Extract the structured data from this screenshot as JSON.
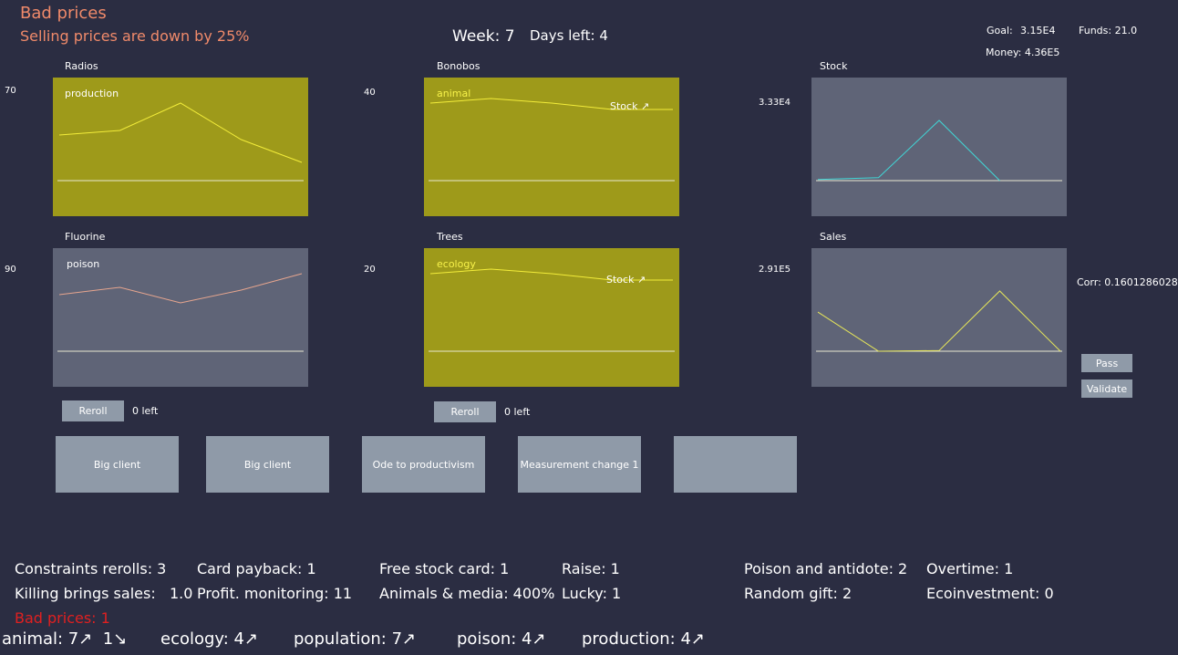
{
  "event": {
    "title": "Bad prices",
    "description": "Selling prices are down by 25%"
  },
  "header": {
    "week": "Week: 7",
    "days_left": "Days left: 4"
  },
  "finance": {
    "goal_label": "Goal:",
    "goal_value": "3.15E4",
    "funds": "Funds: 21.0",
    "money": "Money: 4.36E5"
  },
  "charts": [
    {
      "title": "Radios",
      "scale": "70",
      "tag": "production",
      "stock_tag": "",
      "bg": "#9e9a1a",
      "line_color": "#f2ec3a",
      "values": [
        5,
        5.5,
        8.5,
        4.5,
        2
      ]
    },
    {
      "title": "Bonobos",
      "scale": "40",
      "tag": "animal",
      "stock_tag": "Stock ↗",
      "bg": "#9e9a1a",
      "line_color": "#f2ec3a",
      "values": [
        8.5,
        9,
        8.5,
        7.8,
        7.8
      ]
    },
    {
      "title": "Stock",
      "scale": "3.33E4",
      "tag": "",
      "stock_tag": "",
      "bg": "#5f6477",
      "line_color": "#41d6d6",
      "values": [
        0.02,
        0.05,
        1,
        0,
        null
      ]
    },
    {
      "title": "Fluorine",
      "scale": "90",
      "tag": "poison",
      "stock_tag": "",
      "bg": "#5f6477",
      "line_color": "#e6a58e",
      "values": [
        6.2,
        7,
        5.3,
        6.7,
        8.5
      ]
    },
    {
      "title": "Trees",
      "scale": "20",
      "tag": "ecology",
      "stock_tag": "Stock ↗",
      "bg": "#9e9a1a",
      "line_color": "#f2ec3a",
      "values": [
        8.5,
        9,
        8.5,
        7.8,
        7.8
      ]
    },
    {
      "title": "Sales",
      "scale": "2.91E5",
      "tag": "",
      "stock_tag": "",
      "bg": "#5f6477",
      "line_color": "#e6e65a",
      "values": [
        0.65,
        0,
        0.01,
        1,
        0
      ]
    }
  ],
  "correlation": "Corr: 0.1601286028",
  "rerolls": [
    {
      "label": "Reroll",
      "left": "0 left"
    },
    {
      "label": "Reroll",
      "left": "0 left"
    }
  ],
  "actions": {
    "pass": "Pass",
    "validate": "Validate"
  },
  "cards": [
    "Big client",
    "Big client",
    "Ode to productivism",
    "Measurement change 1",
    ""
  ],
  "stats": [
    "Constraints rerolls: 3",
    "Card payback: 1",
    "Free stock card: 1",
    "Raise: 1",
    "Poison and antidote: 2",
    "Overtime: 1",
    "Killing brings sales:   1.0",
    "Profit. monitoring: 11",
    "Animals & media: 400%",
    "Lucky: 1",
    "Random gift: 2",
    "Ecoinvestment: 0"
  ],
  "bad_prices": "Bad prices: 1",
  "trends": [
    "animal: 7↗  1↘",
    "ecology: 4↗",
    "population: 7↗",
    "poison: 4↗",
    "production: 4↗"
  ]
}
